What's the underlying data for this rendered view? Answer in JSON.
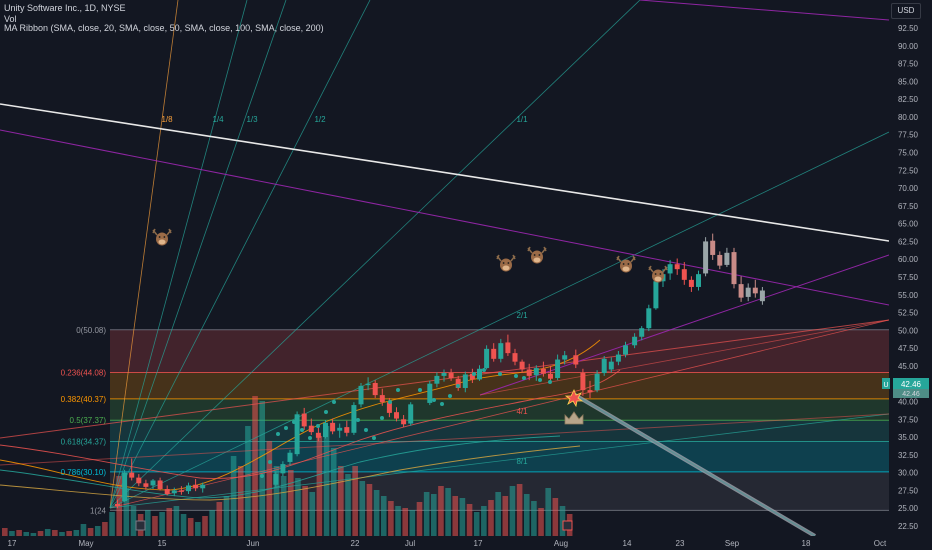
{
  "header": {
    "title": "Unity Software Inc., 1D, NYSE",
    "volume_label": "Vol",
    "ma_ribbon": "MA Ribbon (SMA, close, 20, SMA, close, 50, SMA, close, 100, SMA, close, 200)",
    "currency": "USD"
  },
  "price_badges": {
    "last": "42.46",
    "secondary": "42.46",
    "marker": "U"
  },
  "colors": {
    "background": "#131722",
    "up": "#26a69a",
    "down": "#ef5350",
    "gann_fan": "#26a69a",
    "gann_fan_steep": "#f59e3b",
    "trendline_white": "#e8e8e8",
    "channel_magenta": "#9c27b0",
    "faded_candles": "#787b86"
  },
  "icons": {
    "bull": "bull-head-icon",
    "crown": "crown-icon",
    "explosion": "explosion-icon",
    "event": "event-marker-icon"
  },
  "chart_data": {
    "type": "candlestick",
    "title": "Unity Software Inc., 1D, NYSE",
    "price_axis": {
      "min": 21.0,
      "max": 95.0,
      "ticks": [
        "92.50",
        "90.00",
        "87.50",
        "85.00",
        "82.50",
        "80.00",
        "77.50",
        "75.00",
        "72.50",
        "70.00",
        "67.50",
        "65.00",
        "62.50",
        "60.00",
        "57.50",
        "55.00",
        "52.50",
        "50.00",
        "47.50",
        "45.00",
        "42.50",
        "40.00",
        "37.50",
        "35.00",
        "32.50",
        "30.00",
        "27.50",
        "25.00",
        "22.50"
      ]
    },
    "time_axis": {
      "ticks": [
        "17",
        "May",
        "15",
        "Jun",
        "22",
        "Jul",
        "17",
        "Aug",
        "14",
        "23",
        "Sep",
        "18",
        "Oct"
      ]
    },
    "candles": [
      {
        "date": "May 12",
        "o": 25.6,
        "h": 26.2,
        "l": 25.0,
        "c": 25.3
      },
      {
        "date": "May 15",
        "o": 26.0,
        "h": 30.4,
        "l": 25.9,
        "c": 30.0
      },
      {
        "date": "May 16",
        "o": 30.0,
        "h": 32.0,
        "l": 28.9,
        "c": 29.3
      },
      {
        "date": "May 17",
        "o": 29.3,
        "h": 29.8,
        "l": 28.1,
        "c": 28.5
      },
      {
        "date": "May 18",
        "o": 28.5,
        "h": 29.0,
        "l": 27.6,
        "c": 28.0
      },
      {
        "date": "May 19",
        "o": 28.2,
        "h": 29.1,
        "l": 27.7,
        "c": 28.9
      },
      {
        "date": "May 22",
        "o": 28.9,
        "h": 29.3,
        "l": 27.5,
        "c": 27.7
      },
      {
        "date": "May 23",
        "o": 27.7,
        "h": 28.2,
        "l": 26.8,
        "c": 27.0
      },
      {
        "date": "May 24",
        "o": 27.1,
        "h": 27.9,
        "l": 26.7,
        "c": 27.5
      },
      {
        "date": "May 25",
        "o": 27.5,
        "h": 28.1,
        "l": 26.9,
        "c": 27.3
      },
      {
        "date": "May 26",
        "o": 27.4,
        "h": 28.6,
        "l": 27.0,
        "c": 28.2
      },
      {
        "date": "May 30",
        "o": 28.3,
        "h": 29.1,
        "l": 27.4,
        "c": 27.8
      },
      {
        "date": "May 31",
        "o": 27.8,
        "h": 28.6,
        "l": 27.2,
        "c": 28.3
      },
      {
        "date": "Jun 1",
        "o": 28.3,
        "h": 30.2,
        "l": 28.0,
        "c": 29.8
      },
      {
        "date": "Jun 2",
        "o": 29.9,
        "h": 31.6,
        "l": 29.5,
        "c": 31.2
      },
      {
        "date": "Jun 5",
        "o": 31.5,
        "h": 33.2,
        "l": 31.0,
        "c": 32.8
      },
      {
        "date": "Jun 6",
        "o": 32.6,
        "h": 38.6,
        "l": 32.3,
        "c": 38.2
      },
      {
        "date": "Jun 7",
        "o": 38.3,
        "h": 39.1,
        "l": 36.0,
        "c": 36.5
      },
      {
        "date": "Jun 8",
        "o": 36.6,
        "h": 37.6,
        "l": 35.3,
        "c": 35.7
      },
      {
        "date": "Jun 9",
        "o": 35.6,
        "h": 36.5,
        "l": 34.4,
        "c": 34.9
      },
      {
        "date": "Jun 12",
        "o": 35.0,
        "h": 37.4,
        "l": 34.8,
        "c": 37.0
      },
      {
        "date": "Jun 13",
        "o": 37.0,
        "h": 37.6,
        "l": 35.4,
        "c": 35.8
      },
      {
        "date": "Jun 14",
        "o": 35.9,
        "h": 36.9,
        "l": 34.9,
        "c": 36.3
      },
      {
        "date": "Jun 15",
        "o": 36.4,
        "h": 37.3,
        "l": 35.1,
        "c": 35.6
      },
      {
        "date": "Jun 16",
        "o": 35.6,
        "h": 39.9,
        "l": 35.3,
        "c": 39.5
      },
      {
        "date": "Jun 20",
        "o": 39.6,
        "h": 42.6,
        "l": 39.2,
        "c": 42.2
      },
      {
        "date": "Jun 21",
        "o": 42.3,
        "h": 43.4,
        "l": 41.6,
        "c": 42.5
      },
      {
        "date": "Jun 22",
        "o": 42.6,
        "h": 43.0,
        "l": 40.5,
        "c": 40.9
      },
      {
        "date": "Jun 23",
        "o": 40.9,
        "h": 41.8,
        "l": 39.4,
        "c": 39.9
      },
      {
        "date": "Jun 26",
        "o": 39.9,
        "h": 40.5,
        "l": 37.8,
        "c": 38.4
      },
      {
        "date": "Jun 27",
        "o": 38.5,
        "h": 39.2,
        "l": 37.2,
        "c": 37.6
      },
      {
        "date": "Jun 28",
        "o": 37.5,
        "h": 38.1,
        "l": 36.4,
        "c": 36.8
      },
      {
        "date": "Jun 29",
        "o": 36.9,
        "h": 39.9,
        "l": 36.6,
        "c": 39.6
      },
      {
        "date": "Jun 30",
        "o": 39.8,
        "h": 42.9,
        "l": 39.5,
        "c": 42.5
      },
      {
        "date": "Jul 3",
        "o": 42.5,
        "h": 44.1,
        "l": 42.0,
        "c": 43.6
      },
      {
        "date": "Jul 5",
        "o": 43.6,
        "h": 44.5,
        "l": 42.8,
        "c": 44.0
      },
      {
        "date": "Jul 6",
        "o": 44.0,
        "h": 44.6,
        "l": 42.9,
        "c": 43.3
      },
      {
        "date": "Jul 7",
        "o": 43.2,
        "h": 43.6,
        "l": 41.5,
        "c": 41.9
      },
      {
        "date": "Jul 10",
        "o": 41.9,
        "h": 44.2,
        "l": 41.3,
        "c": 43.8
      },
      {
        "date": "Jul 11",
        "o": 43.9,
        "h": 44.6,
        "l": 42.6,
        "c": 43.1
      },
      {
        "date": "Jul 12",
        "o": 43.1,
        "h": 45.1,
        "l": 42.9,
        "c": 44.6
      },
      {
        "date": "Jul 13",
        "o": 44.7,
        "h": 47.9,
        "l": 44.5,
        "c": 47.4
      },
      {
        "date": "Jul 14",
        "o": 47.4,
        "h": 48.2,
        "l": 45.6,
        "c": 46.0
      },
      {
        "date": "Jul 17",
        "o": 46.0,
        "h": 48.8,
        "l": 45.5,
        "c": 48.2
      },
      {
        "date": "Jul 18",
        "o": 48.3,
        "h": 49.4,
        "l": 46.4,
        "c": 46.8
      },
      {
        "date": "Jul 19",
        "o": 46.8,
        "h": 47.4,
        "l": 45.1,
        "c": 45.6
      },
      {
        "date": "Jul 20",
        "o": 45.6,
        "h": 45.9,
        "l": 44.0,
        "c": 44.5
      },
      {
        "date": "Jul 21",
        "o": 44.5,
        "h": 45.3,
        "l": 43.0,
        "c": 43.6
      },
      {
        "date": "Jul 24",
        "o": 43.7,
        "h": 45.1,
        "l": 42.9,
        "c": 44.7
      },
      {
        "date": "Jul 25",
        "o": 44.6,
        "h": 45.6,
        "l": 43.5,
        "c": 43.9
      },
      {
        "date": "Jul 26",
        "o": 43.9,
        "h": 45.0,
        "l": 42.6,
        "c": 43.2
      },
      {
        "date": "Jul 27",
        "o": 43.3,
        "h": 46.6,
        "l": 43.0,
        "c": 45.9
      },
      {
        "date": "Jul 28",
        "o": 45.9,
        "h": 47.1,
        "l": 45.2,
        "c": 46.5
      },
      {
        "date": "Jul 31",
        "o": 46.5,
        "h": 47.3,
        "l": 44.7,
        "c": 45.2
      },
      {
        "date": "Aug 1",
        "o": 44.0,
        "h": 44.6,
        "l": 40.8,
        "c": 41.6
      },
      {
        "date": "Aug 2",
        "o": 41.6,
        "h": 42.9,
        "l": 40.5,
        "c": 41.3
      },
      {
        "date": "Aug 3",
        "o": 41.6,
        "h": 44.4,
        "l": 41.3,
        "c": 43.9
      },
      {
        "date": "Aug 4",
        "o": 44.0,
        "h": 46.4,
        "l": 43.6,
        "c": 46.0
      },
      {
        "date": "Aug 7",
        "o": 44.5,
        "h": 46.2,
        "l": 44.1,
        "c": 45.6
      },
      {
        "date": "Aug 8",
        "o": 45.6,
        "h": 47.1,
        "l": 45.1,
        "c": 46.6
      },
      {
        "date": "Aug 9",
        "o": 46.6,
        "h": 48.4,
        "l": 46.2,
        "c": 47.9
      },
      {
        "date": "Aug 10",
        "o": 47.9,
        "h": 49.6,
        "l": 47.5,
        "c": 49.1
      },
      {
        "date": "Aug 11",
        "o": 49.1,
        "h": 50.6,
        "l": 48.6,
        "c": 50.3
      },
      {
        "date": "Aug 14",
        "o": 50.3,
        "h": 53.6,
        "l": 49.9,
        "c": 53.1
      },
      {
        "date": "Aug 15",
        "o": 53.1,
        "h": 57.3,
        "l": 52.9,
        "c": 56.9
      },
      {
        "date": "Aug 16",
        "o": 56.9,
        "h": 58.6,
        "l": 56.1,
        "c": 57.9
      },
      {
        "date": "Aug 17",
        "o": 58.0,
        "h": 59.9,
        "l": 57.1,
        "c": 59.3
      },
      {
        "date": "Aug 18",
        "o": 59.3,
        "h": 60.1,
        "l": 57.8,
        "c": 58.6
      },
      {
        "date": "Aug 21",
        "o": 58.6,
        "h": 59.6,
        "l": 56.4,
        "c": 57.1
      },
      {
        "date": "Aug 22",
        "o": 57.1,
        "h": 57.6,
        "l": 55.4,
        "c": 56.1
      },
      {
        "date": "Aug 23",
        "o": 56.1,
        "h": 58.4,
        "l": 55.6,
        "c": 57.9
      },
      {
        "date": "Aug 24",
        "o": 58.0,
        "h": 63.1,
        "l": 57.6,
        "c": 62.5
      },
      {
        "date": "Aug 25",
        "o": 62.6,
        "h": 63.6,
        "l": 59.9,
        "c": 60.6
      },
      {
        "date": "Aug 28",
        "o": 60.6,
        "h": 61.1,
        "l": 58.6,
        "c": 59.1
      },
      {
        "date": "Aug 29",
        "o": 59.2,
        "h": 61.6,
        "l": 58.9,
        "c": 60.9
      },
      {
        "date": "Aug 30",
        "o": 61.0,
        "h": 61.6,
        "l": 55.9,
        "c": 56.5
      },
      {
        "date": "Aug 31",
        "o": 56.5,
        "h": 57.6,
        "l": 54.0,
        "c": 54.6
      },
      {
        "date": "Sep 1",
        "o": 54.7,
        "h": 56.6,
        "l": 54.1,
        "c": 56.0
      },
      {
        "date": "Sep 5",
        "o": 56.0,
        "h": 57.1,
        "l": 54.6,
        "c": 55.2
      },
      {
        "date": "Sep 6",
        "o": 54.1,
        "h": 56.1,
        "l": 53.6,
        "c": 55.6
      }
    ],
    "fibonacci_retracement": [
      {
        "label": "0(50.08)",
        "value": 50.08
      },
      {
        "label": "0.236(44.08)",
        "value": 44.08
      },
      {
        "label": "0.382(40.37)",
        "value": 40.37
      },
      {
        "label": "0.5(37.37)",
        "value": 37.37
      },
      {
        "label": "0.618(34.37)",
        "value": 34.37
      },
      {
        "label": "0.786(30.10)",
        "value": 30.1
      },
      {
        "label": "1(24",
        "value": 24.7
      }
    ],
    "gann_fan_labels": [
      "1/8",
      "1/4",
      "1/3",
      "1/2",
      "1/1",
      "2/1",
      "4/1",
      "8/1"
    ],
    "annotations": [
      "bull-head-icon",
      "bull-head-icon",
      "bull-head-icon",
      "bull-head-icon",
      "bull-head-icon",
      "crown-icon",
      "explosion-icon"
    ],
    "grid": false,
    "legend": "top-left"
  }
}
